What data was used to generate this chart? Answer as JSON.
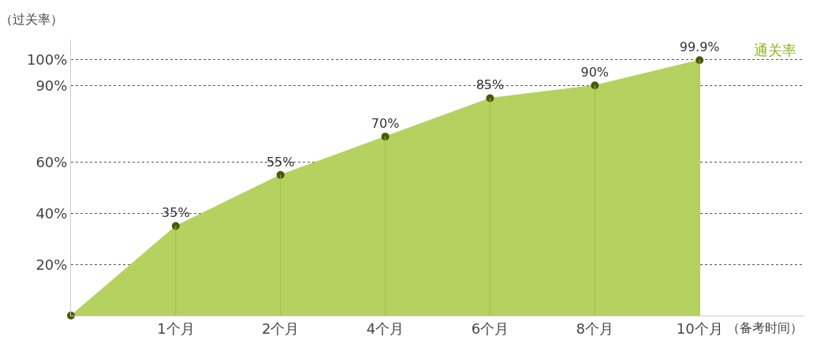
{
  "chart_data": {
    "type": "area",
    "ylabel": "（过关率）",
    "xlabel": "（备考时间）",
    "categories": [
      null,
      "1个月",
      "2个月",
      "4个月",
      "6个月",
      "8个月",
      "10个月",
      null
    ],
    "series": [
      {
        "name": "通关率",
        "color": "#b5d160",
        "values": [
          0,
          35,
          55,
          70,
          85,
          90,
          99.9,
          null
        ],
        "value_labels": [
          null,
          "35%",
          "55%",
          "70%",
          "85%",
          "90%",
          "99.9%",
          null
        ]
      }
    ],
    "ylim": [
      0,
      108
    ],
    "yticks": [
      {
        "value": 20,
        "label": "20%"
      },
      {
        "value": 40,
        "label": "40%"
      },
      {
        "value": 60,
        "label": "60%"
      },
      {
        "value": 90,
        "label": "90%"
      },
      {
        "value": 100,
        "label": "100%"
      }
    ],
    "grid": true,
    "marker": "circle"
  }
}
